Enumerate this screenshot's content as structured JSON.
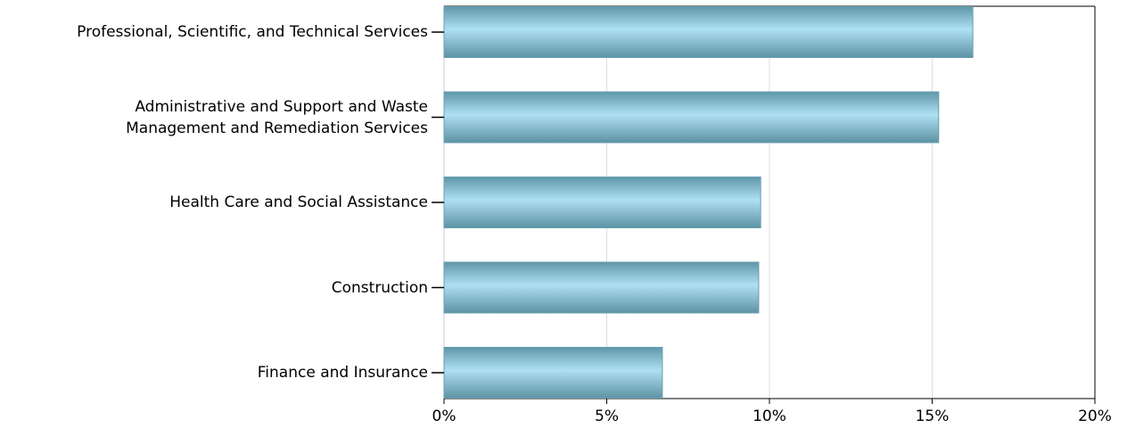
{
  "chart_data": {
    "type": "barh",
    "categories": [
      "Professional, Scientific, and Technical Services",
      "Administrative and Support and Waste Management and Remediation Services",
      "Health Care and Social Assistance",
      "Construction",
      "Finance and Insurance"
    ],
    "values": [
      16.25,
      15.2,
      9.73,
      9.67,
      6.71
    ],
    "color": "#8cc4d8",
    "xlim": [
      0,
      20
    ],
    "xticks": [
      {
        "value": 0,
        "label": "0%"
      },
      {
        "value": 5,
        "label": "5%"
      },
      {
        "value": 10,
        "label": "10%"
      },
      {
        "value": 15,
        "label": "15%"
      },
      {
        "value": 20,
        "label": "20%"
      }
    ],
    "grid": true
  }
}
